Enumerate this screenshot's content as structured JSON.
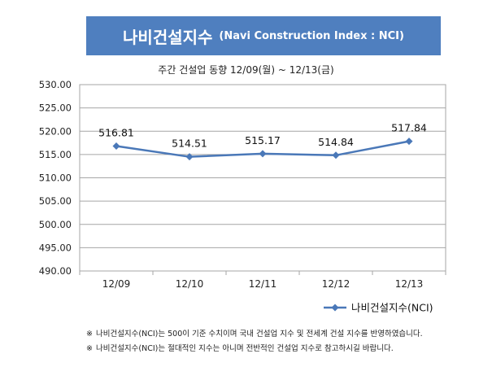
{
  "title": "나비건설지수",
  "subtitle": "(Navi Construction Index : NCI)",
  "period_label": "주간 건설업 동향 12/09(월) ~ 12/13(금)",
  "notes": [
    "나비건설지수(NCI)는 500이 기준 수치이며 국내 건설업 지수 및 전세계 건설 지수를 반영하였습니다.",
    "나비건설지수(NCI)는 절대적인 지수는 아니며 전반적인 건설업 지수로 참고하시길 바랍니다."
  ],
  "note_mark": "※",
  "colors": {
    "banner": "#4f7fbf",
    "line": "#4a78b8",
    "grid": "#a6a6a6"
  },
  "chart_data": {
    "type": "line",
    "categories": [
      "12/09",
      "12/10",
      "12/11",
      "12/12",
      "12/13"
    ],
    "series": [
      {
        "name": "나비건설지수(NCI)",
        "values": [
          516.81,
          514.51,
          515.17,
          514.84,
          517.84
        ]
      }
    ],
    "data_labels": [
      "516.81",
      "514.51",
      "515.17",
      "514.84",
      "517.84"
    ],
    "yticks": [
      "530.00",
      "525.00",
      "520.00",
      "515.00",
      "510.00",
      "505.00",
      "500.00",
      "495.00",
      "490.00"
    ],
    "ylim": [
      490,
      530
    ],
    "ystep": 5,
    "grid": true,
    "legend_position": "bottom-right",
    "marker": "diamond"
  }
}
